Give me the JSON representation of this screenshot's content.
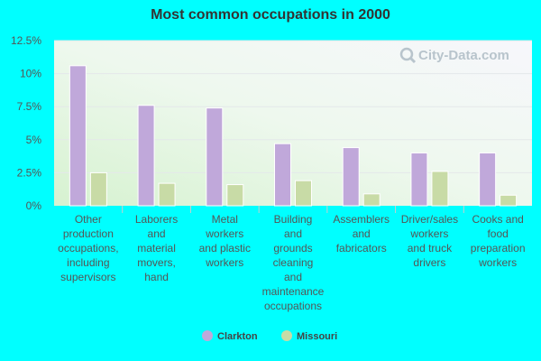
{
  "chart_data": {
    "type": "bar",
    "title": "Most common occupations in 2000",
    "categories": [
      "Other production occupations, including supervisors",
      "Laborers and material movers, hand",
      "Metal workers and plastic workers",
      "Building and grounds cleaning and maintenance occupations",
      "Assemblers and fabricators",
      "Driver/sales workers and truck drivers",
      "Cooks and food preparation workers"
    ],
    "category_lines": [
      [
        "Other",
        "production",
        "occupations,",
        "including",
        "supervisors"
      ],
      [
        "Laborers",
        "and",
        "material",
        "movers,",
        "hand"
      ],
      [
        "Metal",
        "workers",
        "and plastic",
        "workers"
      ],
      [
        "Building",
        "and",
        "grounds",
        "cleaning",
        "and",
        "maintenance",
        "occupations"
      ],
      [
        "Assemblers",
        "and",
        "fabricators"
      ],
      [
        "Driver/sales",
        "workers",
        "and truck",
        "drivers"
      ],
      [
        "Cooks and",
        "food",
        "preparation",
        "workers"
      ]
    ],
    "series": [
      {
        "name": "Clarkton",
        "color": "#c0a8da",
        "values": [
          10.6,
          7.6,
          7.4,
          4.7,
          4.4,
          4.0,
          4.0
        ]
      },
      {
        "name": "Missouri",
        "color": "#c8dba6",
        "values": [
          2.5,
          1.7,
          1.6,
          1.9,
          0.9,
          2.6,
          0.8
        ]
      }
    ],
    "y_ticks": [
      "0%",
      "2.5%",
      "5%",
      "7.5%",
      "10%",
      "12.5%"
    ],
    "y_tick_values": [
      0,
      2.5,
      5,
      7.5,
      10,
      12.5
    ],
    "ylim": [
      0,
      12.5
    ],
    "grid": true,
    "legend_position": "bottom-center",
    "xlabel": "",
    "ylabel": ""
  },
  "watermark": {
    "text": "City-Data.com",
    "icon": "magnifier-icon"
  }
}
